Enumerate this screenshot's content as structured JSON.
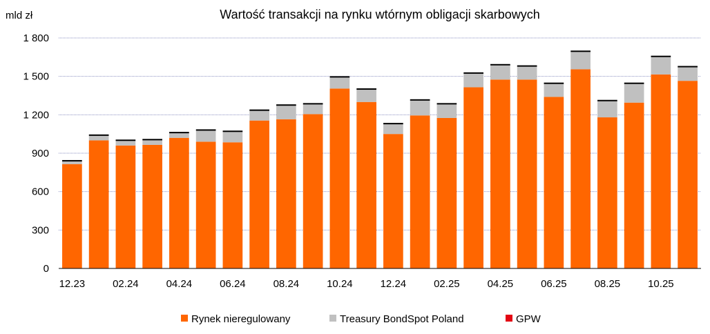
{
  "chart_data": {
    "type": "bar",
    "stacked": true,
    "title": "Wartość transakcji na rynku wtórnym obligacji skarbowych",
    "ylabel": "mld zł",
    "xlabel": "",
    "ylim": [
      0,
      1800
    ],
    "yticks": [
      "0",
      "300",
      "600",
      "900",
      "1 200",
      "1 500",
      "1 800"
    ],
    "ytick_values": [
      0,
      300,
      600,
      900,
      1200,
      1500,
      1800
    ],
    "grid": true,
    "legend_position": "bottom",
    "categories": [
      "12.23",
      "01.24",
      "02.24",
      "03.24",
      "04.24",
      "05.24",
      "06.24",
      "07.24",
      "08.24",
      "09.24",
      "10.24",
      "11.24",
      "12.24",
      "01.25",
      "02.25",
      "03.25",
      "04.25",
      "05.25",
      "06.25",
      "07.25",
      "08.25",
      "09.25",
      "10.25",
      "11.25"
    ],
    "x_tick_labels": [
      "12.23",
      "",
      "02.24",
      "",
      "04.24",
      "",
      "06.24",
      "",
      "08.24",
      "",
      "10.24",
      "",
      "12.24",
      "",
      "02.25",
      "",
      "04.25",
      "",
      "06.25",
      "",
      "08.25",
      "",
      "10.25",
      ""
    ],
    "series": [
      {
        "name": "Rynek nieregulowany",
        "color": "#FF6600",
        "values": [
          815,
          1000,
          960,
          965,
          1020,
          990,
          985,
          1155,
          1165,
          1205,
          1405,
          1300,
          1050,
          1195,
          1175,
          1415,
          1475,
          1475,
          1340,
          1555,
          1180,
          1295,
          1515,
          1465
        ]
      },
      {
        "name": "Treasury BondSpot Poland",
        "color": "#C0C0C0",
        "values": [
          25,
          40,
          40,
          40,
          40,
          90,
          85,
          80,
          110,
          80,
          90,
          100,
          80,
          120,
          110,
          110,
          115,
          105,
          105,
          140,
          130,
          150,
          140,
          110
        ]
      },
      {
        "name": "GPW",
        "color": "#E30613",
        "values": [
          1,
          1,
          1,
          1,
          1,
          1,
          1,
          1,
          1,
          1,
          1,
          1,
          1,
          1,
          1,
          1,
          1,
          1,
          1,
          1,
          1,
          1,
          1,
          1
        ]
      }
    ]
  }
}
